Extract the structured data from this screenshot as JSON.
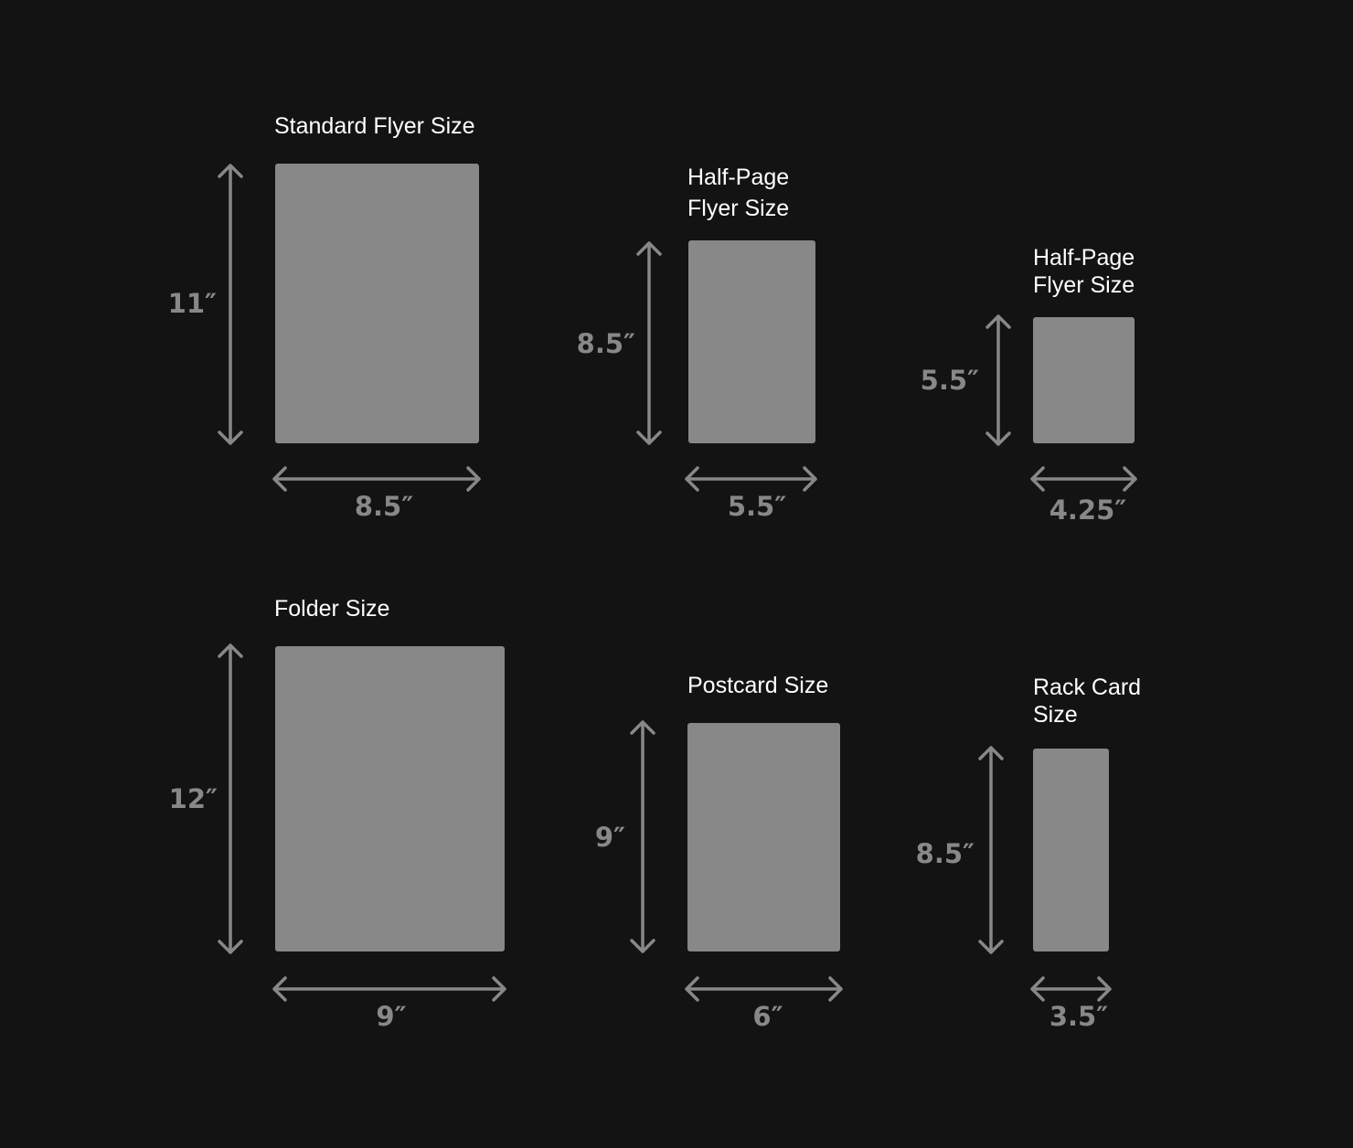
{
  "colors": {
    "background": "#131313",
    "sheet": "#888888",
    "arrow": "#888888",
    "dimension_text": "#888888",
    "title_text": "#ffffff"
  },
  "sizes": [
    {
      "id": "standard-flyer",
      "title_lines": [
        "Standard Flyer Size"
      ],
      "width_label": "8.5″",
      "height_label": "11″"
    },
    {
      "id": "half-page-flyer-1",
      "title_lines": [
        "Half-Page",
        "Flyer Size"
      ],
      "width_label": "5.5″",
      "height_label": "8.5″"
    },
    {
      "id": "half-page-flyer-2",
      "title_lines": [
        "Half-Page",
        "Flyer Size"
      ],
      "width_label": "4.25″",
      "height_label": "5.5″"
    },
    {
      "id": "folder",
      "title_lines": [
        "Folder Size"
      ],
      "width_label": "9″",
      "height_label": "12″"
    },
    {
      "id": "postcard",
      "title_lines": [
        "Postcard Size"
      ],
      "width_label": "6″",
      "height_label": "9″"
    },
    {
      "id": "rack-card",
      "title_lines": [
        "Rack Card",
        "Size"
      ],
      "width_label": "3.5″",
      "height_label": "8.5″"
    }
  ]
}
